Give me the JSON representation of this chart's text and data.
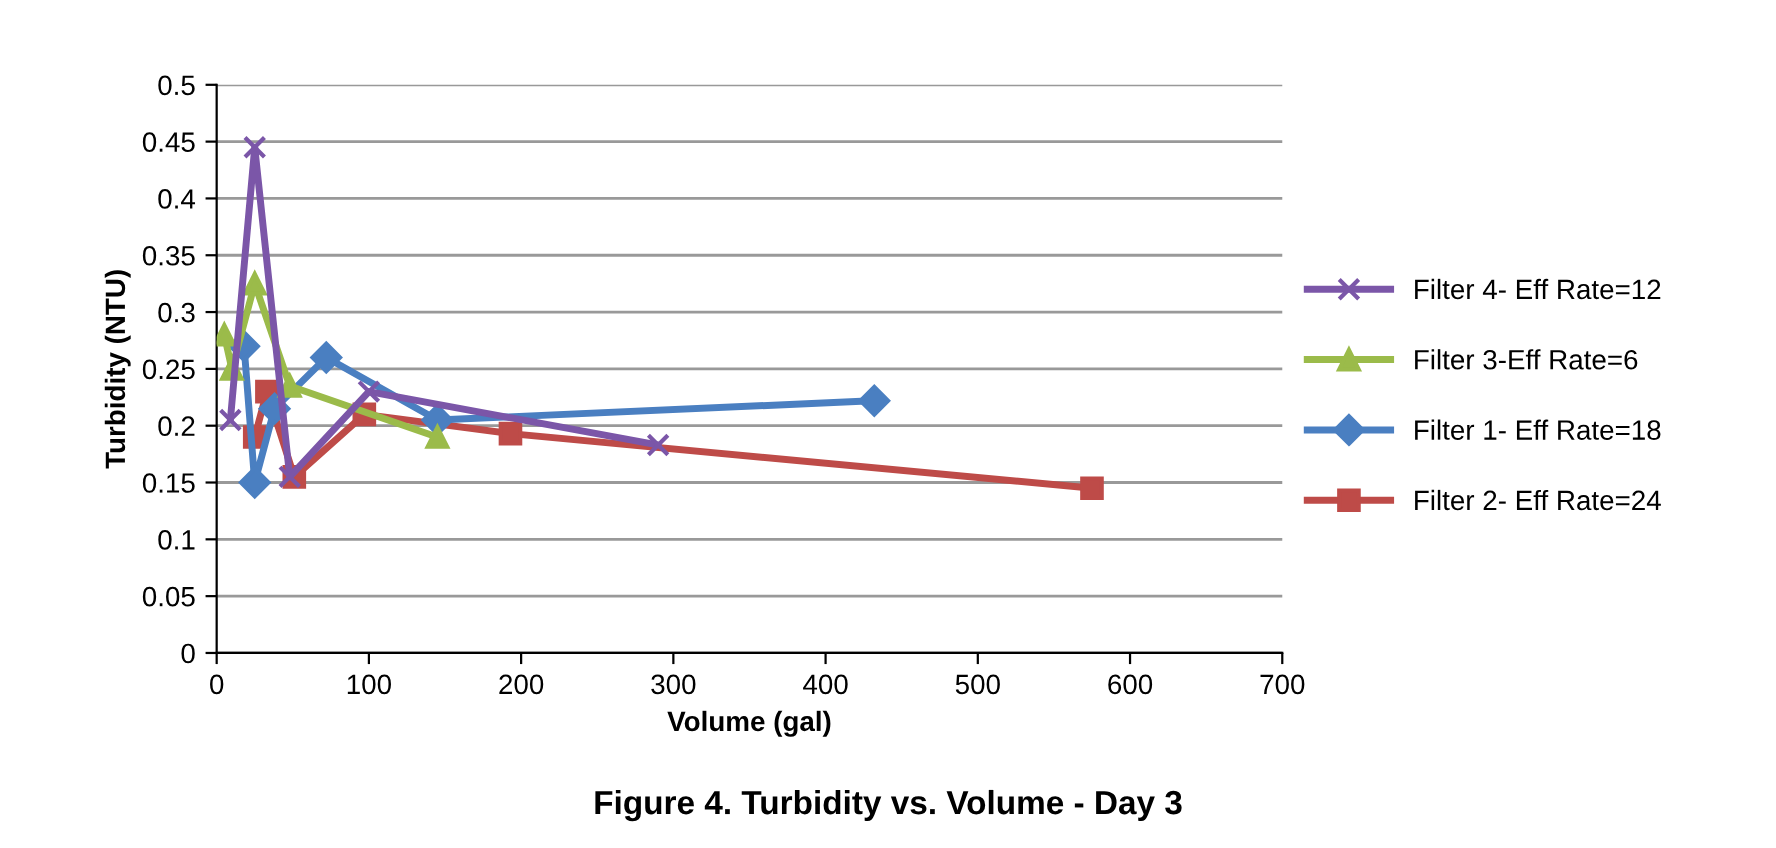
{
  "chart_data": {
    "type": "line",
    "title": "Figure 4. Turbidity vs. Volume - Day 3",
    "xlabel": "Volume (gal)",
    "ylabel": "Turbidity (NTU)",
    "xlim": [
      0,
      700
    ],
    "xticks": [
      0,
      100,
      200,
      300,
      400,
      500,
      600,
      700
    ],
    "ylim": [
      0,
      0.5
    ],
    "yticks": [
      0,
      0.05,
      0.1,
      0.15,
      0.2,
      0.25,
      0.3,
      0.35,
      0.4,
      0.45,
      0.5
    ],
    "grid": "y",
    "legend": "right",
    "line_style": "solid",
    "series": [
      {
        "name": "Filter 4- Eff Rate=12",
        "color": "#7b56a8",
        "marker": "cross",
        "x": [
          9,
          25,
          48,
          100,
          290
        ],
        "values": [
          0.205,
          0.445,
          0.155,
          0.23,
          0.183
        ]
      },
      {
        "name": "Filter 3-Eff Rate=6",
        "color": "#9bbb4a",
        "marker": "triangle",
        "x": [
          5,
          10,
          25,
          48,
          145
        ],
        "values": [
          0.28,
          0.25,
          0.325,
          0.235,
          0.19
        ]
      },
      {
        "name": "Filter 1- Eff Rate=18",
        "color": "#4a7fc1",
        "marker": "diamond",
        "x": [
          18,
          25,
          38,
          72,
          145,
          432
        ],
        "values": [
          0.27,
          0.15,
          0.215,
          0.26,
          0.205,
          0.222
        ]
      },
      {
        "name": "Filter 2- Eff Rate=24",
        "color": "#be4b48",
        "marker": "square",
        "x": [
          25,
          33,
          51,
          97,
          193,
          575
        ],
        "values": [
          0.19,
          0.23,
          0.155,
          0.21,
          0.193,
          0.145
        ]
      }
    ]
  }
}
